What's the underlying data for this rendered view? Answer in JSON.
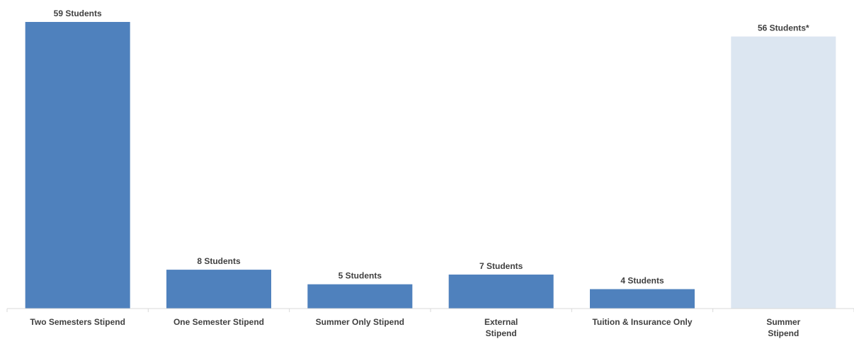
{
  "chart_data": {
    "type": "bar",
    "categories": [
      [
        "Two Semesters Stipend"
      ],
      [
        "One Semester Stipend"
      ],
      [
        "Summer Only Stipend"
      ],
      [
        "External",
        "Stipend"
      ],
      [
        "Tuition & Insurance Only"
      ],
      [
        "Summer",
        "Stipend"
      ]
    ],
    "values": [
      59,
      8,
      5,
      7,
      4,
      56
    ],
    "data_labels": [
      "59 Students",
      "8 Students",
      "5 Students",
      "7 Students",
      "4 Students",
      "56 Students*"
    ],
    "colors": [
      "#4f81bd",
      "#4f81bd",
      "#4f81bd",
      "#4f81bd",
      "#4f81bd",
      "#dce6f1"
    ],
    "title": "",
    "xlabel": "",
    "ylabel": "",
    "ylim": [
      0,
      59
    ],
    "grid": false,
    "legend": "none"
  }
}
